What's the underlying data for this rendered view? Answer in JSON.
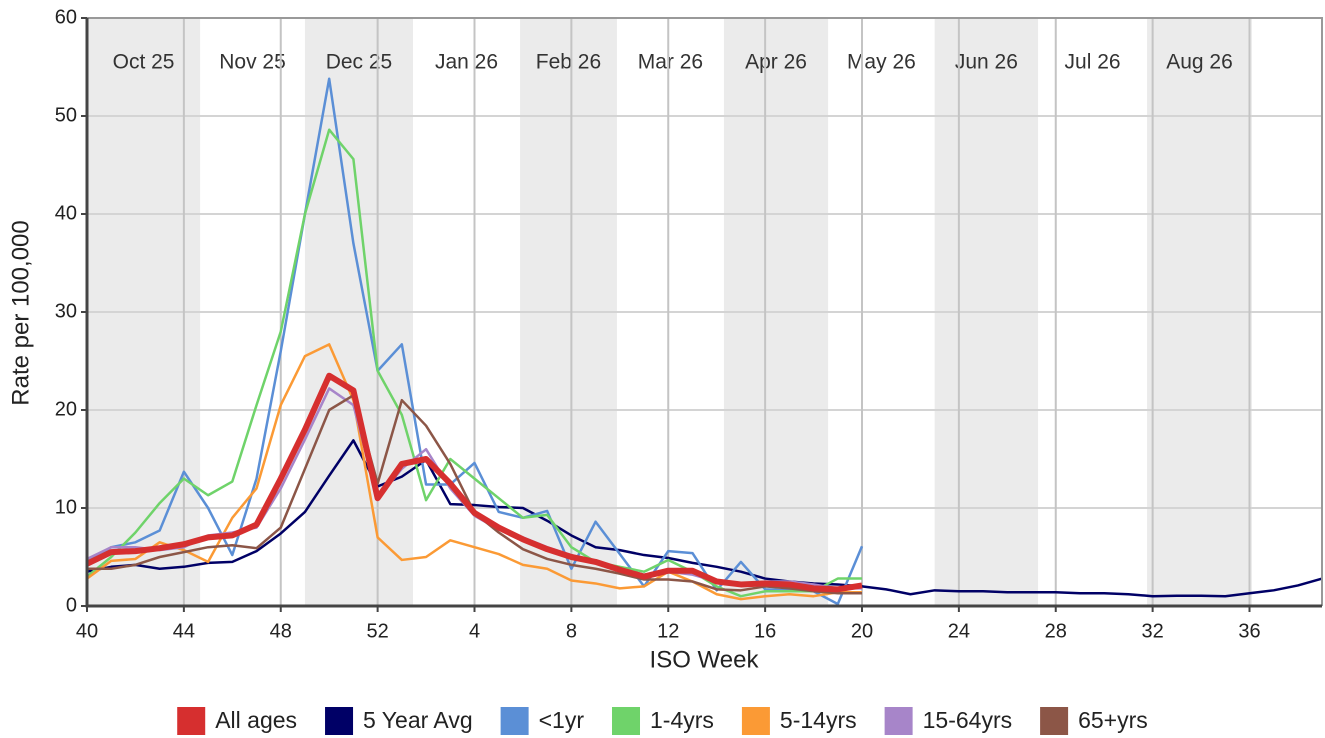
{
  "chart_data": {
    "type": "line",
    "xlabel": "ISO Week",
    "ylabel": "Rate per 100,000",
    "categories": [
      40,
      null,
      null,
      null,
      44,
      null,
      null,
      null,
      48,
      null,
      null,
      null,
      52,
      null,
      null,
      null,
      4,
      null,
      null,
      null,
      8,
      null,
      null,
      null,
      12,
      null,
      null,
      null,
      16,
      null,
      null,
      null,
      20,
      null,
      null,
      null,
      24,
      null,
      null,
      null,
      28,
      null,
      null,
      null,
      32,
      null,
      null,
      null,
      36,
      null,
      null,
      null
    ],
    "months": [
      "Oct 25",
      "Nov 25",
      "Dec 25",
      "Jan 26",
      "Feb 26",
      "Mar 26",
      "Apr 26",
      "May 26",
      "Jun 26",
      "Jul 26",
      "Aug 26"
    ],
    "ylim": [
      0,
      60
    ],
    "yticks": [
      0,
      10,
      20,
      30,
      40,
      50,
      60
    ],
    "grid": true,
    "legend": "bottom",
    "series": [
      {
        "name": "All ages",
        "color": "#d62f2f",
        "values": [
          4.3,
          5.5,
          5.6,
          5.9,
          6.3,
          7.0,
          7.2,
          8.3,
          13,
          18,
          23.5,
          22,
          11,
          14.5,
          15,
          12.5,
          9.5,
          8,
          6.8,
          5.8,
          5,
          4.5,
          3.7,
          3,
          3.6,
          3.6,
          2.5,
          2.2,
          2.3,
          2.2,
          1.8,
          1.7,
          2.1,
          null,
          null,
          null,
          null,
          null,
          null,
          null,
          null,
          null,
          null,
          null,
          null,
          null,
          null,
          null,
          null,
          null,
          null,
          null
        ]
      },
      {
        "name": "5 Year Avg",
        "color": "#000066",
        "values": [
          3.5,
          4,
          4.2,
          3.8,
          4,
          4.4,
          4.5,
          5.6,
          7.4,
          9.6,
          13.3,
          16.9,
          12.2,
          13.2,
          14.9,
          10.4,
          10.3,
          10.1,
          10,
          8.7,
          7.2,
          6,
          5.7,
          5.2,
          4.9,
          4.4,
          4,
          3.5,
          2.8,
          2.5,
          2.3,
          2.2,
          2,
          1.7,
          1.2,
          1.6,
          1.5,
          1.5,
          1.4,
          1.4,
          1.4,
          1.3,
          1.3,
          1.2,
          1,
          1.05,
          1.05,
          1,
          1.3,
          1.6,
          2.1,
          2.8
        ]
      },
      {
        "name": "<1yr",
        "color": "#5b8fd6",
        "values": [
          4.5,
          6,
          6.5,
          7.7,
          13.7,
          10,
          5.2,
          13,
          26,
          40,
          53.8,
          37,
          24,
          26.7,
          12.4,
          12.4,
          14.6,
          9.6,
          9,
          9.7,
          3.8,
          8.6,
          5.3,
          2,
          5.6,
          5.4,
          1.6,
          4.5,
          1.7,
          1.6,
          1.5,
          0.2,
          6.1,
          null,
          null,
          null,
          null,
          null,
          null,
          null,
          null,
          null,
          null,
          null,
          null,
          null,
          null,
          null,
          null,
          null,
          null,
          null
        ]
      },
      {
        "name": "1-4yrs",
        "color": "#6fd36a",
        "values": [
          3,
          5,
          7.5,
          10.5,
          13,
          11.3,
          12.7,
          20.5,
          28,
          40,
          48.6,
          45.6,
          24,
          19.5,
          10.8,
          15,
          13,
          11,
          9,
          9.3,
          6,
          4.5,
          4,
          3.5,
          4.7,
          3.5,
          2,
          1,
          1.5,
          1.5,
          1.5,
          2.8,
          2.8,
          null,
          null,
          null,
          null,
          null,
          null,
          null,
          null,
          null,
          null,
          null,
          null,
          null,
          null,
          null,
          null,
          null,
          null,
          null
        ]
      },
      {
        "name": "5-14yrs",
        "color": "#fb9a35",
        "values": [
          2.8,
          4.6,
          4.8,
          6.5,
          5.7,
          4.5,
          9,
          12,
          20.5,
          25.5,
          26.7,
          21,
          7,
          4.7,
          5,
          6.7,
          6,
          5.3,
          4.2,
          3.8,
          2.6,
          2.3,
          1.8,
          2,
          3.5,
          2.5,
          1.2,
          0.7,
          1,
          1.2,
          1,
          1.4,
          1.4,
          null,
          null,
          null,
          null,
          null,
          null,
          null,
          null,
          null,
          null,
          null,
          null,
          null,
          null,
          null,
          null,
          null,
          null,
          null
        ]
      },
      {
        "name": "15-64yrs",
        "color": "#a785c9",
        "values": [
          4.8,
          6,
          6,
          5.7,
          6,
          7.2,
          7.5,
          8,
          12,
          17,
          22.2,
          20.5,
          11,
          14,
          16,
          12,
          9.2,
          7.8,
          7,
          6,
          5.2,
          4.5,
          3.8,
          3.2,
          3.5,
          3.2,
          2.5,
          2.2,
          2.5,
          2.5,
          2.2,
          1.8,
          1.8,
          null,
          null,
          null,
          null,
          null,
          null,
          null,
          null,
          null,
          null,
          null,
          null,
          null,
          null,
          null,
          null,
          null,
          null,
          null
        ]
      },
      {
        "name": "65+yrs",
        "color": "#8c5647",
        "values": [
          3.8,
          3.8,
          4.2,
          5,
          5.5,
          6,
          6.2,
          5.9,
          8,
          14,
          20,
          21.5,
          12.5,
          21,
          18.4,
          14.5,
          9.5,
          7.5,
          5.8,
          4.8,
          4.2,
          3.8,
          3.3,
          2.7,
          2.7,
          2.5,
          1.7,
          1.6,
          2,
          1.8,
          1.5,
          1.3,
          1.3,
          null,
          null,
          null,
          null,
          null,
          null,
          null,
          null,
          null,
          null,
          null,
          null,
          null,
          null,
          null,
          null,
          null,
          null,
          null
        ]
      }
    ]
  }
}
